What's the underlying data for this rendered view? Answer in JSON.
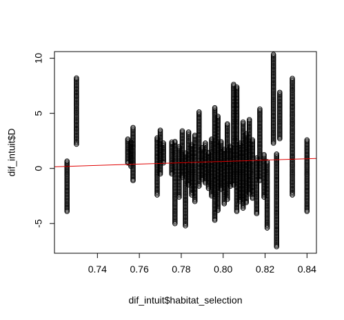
{
  "chart_data": {
    "type": "scatter",
    "title": "",
    "xlabel": "dif_intuit$habitat_selection",
    "ylabel": "dif_intuit$D",
    "xlim": [
      0.7195,
      0.8445
    ],
    "ylim": [
      -7.7,
      10.6
    ],
    "x_ticks": [
      0.74,
      0.76,
      0.78,
      0.8,
      0.82,
      0.84
    ],
    "x_tick_labels": [
      "0.74",
      "0.76",
      "0.78",
      "0.80",
      "0.82",
      "0.84"
    ],
    "y_ticks": [
      -5,
      0,
      5,
      10
    ],
    "y_tick_labels": [
      "-5",
      "0",
      "5",
      "10"
    ],
    "grid": false,
    "point_style": "open-circle",
    "point_color": "#000000",
    "trend_line": {
      "color": "#e00000",
      "x": [
        0.7195,
        0.8445
      ],
      "y": [
        0.15,
        0.9
      ]
    },
    "columns": [
      {
        "x": 0.7255,
        "ymin": -3.9,
        "ymax": 0.7
      },
      {
        "x": 0.73,
        "ymin": 2.2,
        "ymax": 8.3
      },
      {
        "x": 0.7545,
        "ymin": 0.5,
        "ymax": 2.7
      },
      {
        "x": 0.756,
        "ymin": 0.2,
        "ymax": 2.4
      },
      {
        "x": 0.757,
        "ymin": -1.1,
        "ymax": 3.8
      },
      {
        "x": 0.7685,
        "ymin": -2.4,
        "ymax": 2.8
      },
      {
        "x": 0.77,
        "ymin": -0.5,
        "ymax": 3.5
      },
      {
        "x": 0.7715,
        "ymin": 0.5,
        "ymax": 2.4
      },
      {
        "x": 0.7755,
        "ymin": -0.5,
        "ymax": 2.4
      },
      {
        "x": 0.777,
        "ymin": -5.0,
        "ymax": 2.5
      },
      {
        "x": 0.779,
        "ymin": -2.6,
        "ymax": 2.0
      },
      {
        "x": 0.7805,
        "ymin": -0.8,
        "ymax": 3.4
      },
      {
        "x": 0.782,
        "ymin": -5.2,
        "ymax": 1.4
      },
      {
        "x": 0.7835,
        "ymin": -1.5,
        "ymax": 3.3
      },
      {
        "x": 0.785,
        "ymin": -2.4,
        "ymax": 2.2
      },
      {
        "x": 0.7865,
        "ymin": -3.0,
        "ymax": 3.0
      },
      {
        "x": 0.7885,
        "ymin": -1.6,
        "ymax": 5.2
      },
      {
        "x": 0.79,
        "ymin": -1.0,
        "ymax": 1.9
      },
      {
        "x": 0.7915,
        "ymin": -1.3,
        "ymax": 2.4
      },
      {
        "x": 0.793,
        "ymin": -1.8,
        "ymax": 1.5
      },
      {
        "x": 0.7945,
        "ymin": -2.5,
        "ymax": 2.7
      },
      {
        "x": 0.796,
        "ymin": -4.7,
        "ymax": 5.6
      },
      {
        "x": 0.7975,
        "ymin": -3.8,
        "ymax": 4.8
      },
      {
        "x": 0.799,
        "ymin": -1.9,
        "ymax": 2.5
      },
      {
        "x": 0.8005,
        "ymin": -3.2,
        "ymax": 1.8
      },
      {
        "x": 0.802,
        "ymin": -2.8,
        "ymax": 4.1
      },
      {
        "x": 0.8035,
        "ymin": -1.6,
        "ymax": 2.0
      },
      {
        "x": 0.805,
        "ymin": -1.5,
        "ymax": 7.7
      },
      {
        "x": 0.8065,
        "ymin": -3.9,
        "ymax": 7.4
      },
      {
        "x": 0.808,
        "ymin": -3.0,
        "ymax": 2.3
      },
      {
        "x": 0.8095,
        "ymin": -3.6,
        "ymax": 4.3
      },
      {
        "x": 0.811,
        "ymin": -3.1,
        "ymax": 3.2
      },
      {
        "x": 0.8125,
        "ymin": -2.3,
        "ymax": 4.5
      },
      {
        "x": 0.814,
        "ymin": -2.7,
        "ymax": 2.6
      },
      {
        "x": 0.816,
        "ymin": -4.1,
        "ymax": 1.0
      },
      {
        "x": 0.8175,
        "ymin": -1.1,
        "ymax": 5.4
      },
      {
        "x": 0.8195,
        "ymin": -2.6,
        "ymax": 1.3
      },
      {
        "x": 0.821,
        "ymin": -5.4,
        "ymax": 0.6
      },
      {
        "x": 0.824,
        "ymin": 2.3,
        "ymax": 10.4
      },
      {
        "x": 0.8255,
        "ymin": -7.1,
        "ymax": 1.4
      },
      {
        "x": 0.827,
        "ymin": 2.7,
        "ymax": 6.9
      },
      {
        "x": 0.833,
        "ymin": -2.4,
        "ymax": 8.2
      },
      {
        "x": 0.84,
        "ymin": -3.9,
        "ymax": 2.6
      }
    ]
  }
}
